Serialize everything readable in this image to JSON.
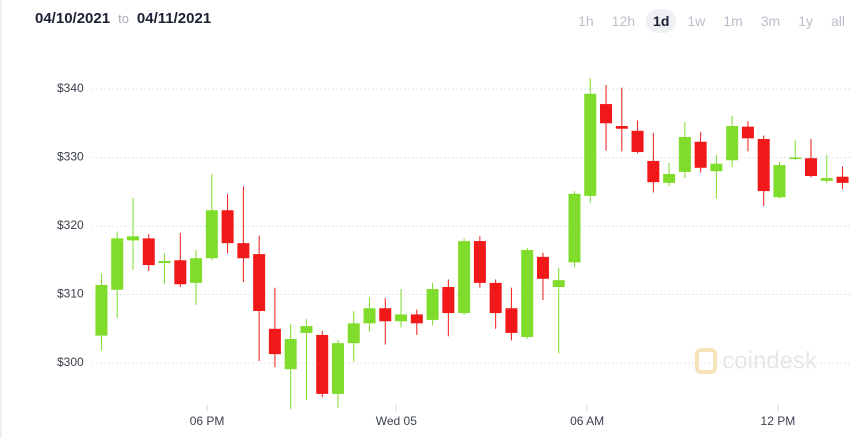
{
  "header": {
    "start_date": "04/10/2021",
    "separator": "to",
    "end_date": "04/11/2021",
    "ranges": [
      "1h",
      "12h",
      "1d",
      "1w",
      "1m",
      "3m",
      "1y",
      "all"
    ],
    "selected_range": 2
  },
  "chart_data": {
    "type": "candlestick",
    "watermark": "coindesk",
    "categories": [
      null,
      null,
      null,
      null,
      null,
      null,
      null,
      null,
      null,
      null,
      null,
      null,
      null,
      null,
      null,
      null,
      null,
      null,
      null,
      null,
      null,
      null,
      null,
      null,
      null,
      null,
      null,
      null,
      null,
      null,
      null,
      null,
      null,
      null,
      null,
      null,
      null,
      null,
      null,
      null,
      null,
      null,
      null,
      null,
      null,
      null,
      null,
      null
    ],
    "open": [
      304.0,
      310.7,
      317.9,
      318.2,
      314.6,
      315.0,
      311.7,
      315.3,
      322.3,
      317.5,
      315.9,
      305.0,
      299.1,
      304.4,
      304.1,
      295.5,
      302.9,
      305.8,
      308.0,
      306.1,
      307.1,
      306.3,
      311.1,
      307.3,
      317.8,
      311.7,
      308.0,
      303.8,
      315.5,
      311.1,
      314.7,
      324.4,
      337.8,
      334.6,
      333.9,
      329.5,
      326.3,
      327.9,
      332.3,
      328.0,
      329.6,
      334.5,
      332.7,
      324.2,
      329.8,
      329.9,
      326.6,
      327.2
    ],
    "high": [
      313.1,
      319.2,
      324.1,
      318.8,
      316.0,
      319.0,
      316.5,
      327.6,
      324.7,
      325.8,
      318.6,
      311.0,
      305.7,
      306.4,
      304.7,
      303.4,
      307.6,
      309.6,
      309.5,
      310.8,
      307.8,
      311.7,
      312.2,
      318.2,
      318.5,
      312.2,
      311.0,
      316.8,
      316.1,
      313.9,
      325.1,
      341.6,
      340.6,
      340.2,
      335.4,
      333.6,
      329.2,
      335.2,
      333.7,
      330.4,
      336.1,
      335.3,
      333.2,
      329.4,
      332.5,
      332.7,
      330.4,
      328.7
    ],
    "low": [
      301.8,
      306.6,
      313.6,
      313.4,
      311.6,
      311.1,
      308.5,
      315.0,
      316.0,
      311.8,
      300.3,
      299.4,
      293.3,
      294.6,
      295.0,
      293.5,
      300.2,
      304.6,
      302.7,
      305.2,
      304.1,
      305.5,
      303.9,
      307.0,
      311.0,
      305.0,
      303.3,
      303.5,
      309.2,
      301.4,
      314.0,
      323.4,
      331.0,
      330.9,
      330.6,
      324.9,
      325.8,
      327.0,
      327.8,
      324.0,
      328.6,
      330.9,
      322.9,
      324.0,
      329.6,
      327.1,
      326.3,
      325.4
    ],
    "close": [
      311.4,
      318.2,
      318.5,
      314.3,
      314.9,
      311.5,
      315.3,
      322.3,
      317.5,
      315.3,
      307.6,
      301.3,
      303.5,
      305.4,
      295.5,
      302.9,
      305.8,
      308.0,
      306.1,
      307.1,
      305.8,
      310.8,
      307.3,
      317.8,
      311.7,
      307.3,
      304.4,
      316.5,
      312.3,
      312.1,
      324.7,
      339.3,
      335.0,
      334.2,
      330.8,
      326.4,
      327.6,
      333.0,
      328.5,
      329.1,
      334.6,
      332.8,
      325.1,
      328.9,
      330.0,
      327.3,
      327.0,
      326.3
    ],
    "up_color": "#7fdc2a",
    "down_color": "#f01818",
    "xlim": [
      -0.6,
      47.6
    ],
    "xticks": [
      {
        "value": 6.7,
        "label": "06 PM"
      },
      {
        "value": 18.7,
        "label": "Wed 05"
      },
      {
        "value": 30.8,
        "label": "06 AM"
      },
      {
        "value": 42.9,
        "label": "12 PM"
      }
    ],
    "ylim": [
      293,
      344
    ],
    "yticks": [
      {
        "value": 300,
        "label": "$300"
      },
      {
        "value": 310,
        "label": "$310"
      },
      {
        "value": 320,
        "label": "$320"
      },
      {
        "value": 330,
        "label": "$330"
      },
      {
        "value": 340,
        "label": "$340"
      }
    ],
    "grid": true
  }
}
